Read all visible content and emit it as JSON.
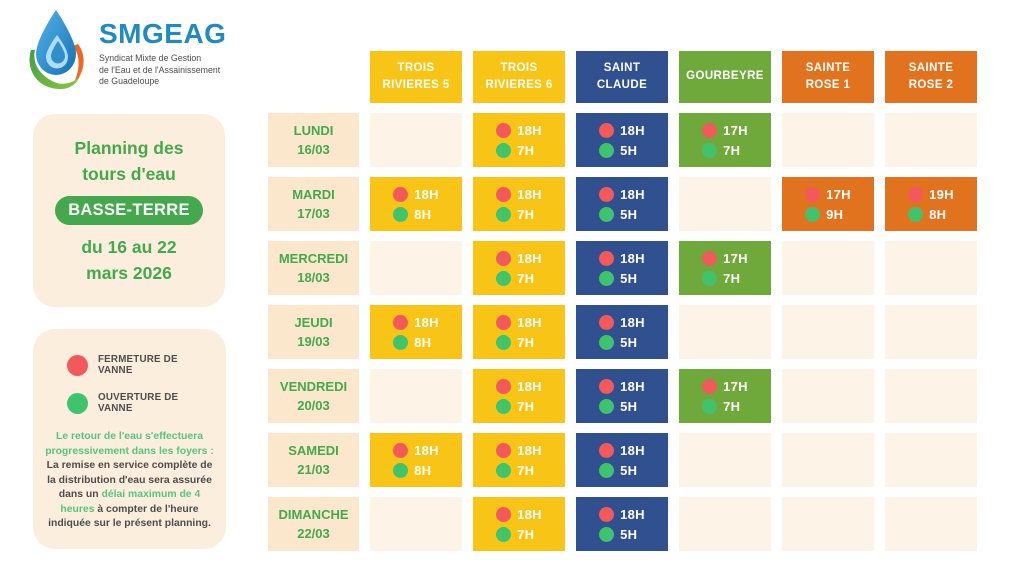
{
  "colors": {
    "page_bg": "#FFFFFF",
    "card_bg": "#FBEEDC",
    "day_cell_bg": "#FBE7CC",
    "empty_cell_bg": "#FDF3E6",
    "green_text": "#44A94D",
    "badge_bg": "#44A94D",
    "mint_text": "#57C57E",
    "dark_text": "#4D4D4D",
    "close_dot": "#F2595B",
    "open_dot": "#3FC46D",
    "logo_blue": "#1E8BC3"
  },
  "logo": {
    "brand": "SMGEAG",
    "subtitle_lines": [
      "Syndicat Mixte de Gestion",
      "de l'Eau et de l'Assainissement",
      "de Guadeloupe"
    ]
  },
  "sidebar": {
    "title_lines": [
      "Planning des",
      "tours d'eau"
    ],
    "badge": "BASSE-TERRE",
    "date_lines": [
      "du 16 au 22",
      "mars 2026"
    ]
  },
  "legend": {
    "close_label": "FERMETURE DE VANNE",
    "open_label": "OUVERTURE DE VANNE",
    "note": [
      {
        "text": "Le retour de l'eau s'effectuera progressivement dans les foyers :",
        "color": "mint"
      },
      {
        "text": " La remise en service complète de la distribution d'eau sera assurée dans un ",
        "color": "dark"
      },
      {
        "text": "délai maximum de 4 heures",
        "color": "mint"
      },
      {
        "text": " à compter de l'heure indiquée sur le présent planning.",
        "color": "dark"
      }
    ]
  },
  "schedule": {
    "columns": [
      {
        "id": "trois-rivieres-5",
        "label_lines": [
          "TROIS",
          "RIVIERES 5"
        ],
        "color": "#F8C516"
      },
      {
        "id": "trois-rivieres-6",
        "label_lines": [
          "TROIS",
          "RIVIERES 6"
        ],
        "color": "#F8C516"
      },
      {
        "id": "saint-claude",
        "label_lines": [
          "SAINT",
          "CLAUDE"
        ],
        "color": "#31508F"
      },
      {
        "id": "gourbeyre",
        "label_lines": [
          "GOURBEYRE"
        ],
        "color": "#6FA93C"
      },
      {
        "id": "sainte-rose-1",
        "label_lines": [
          "SAINTE",
          "ROSE 1"
        ],
        "color": "#E2731E"
      },
      {
        "id": "sainte-rose-2",
        "label_lines": [
          "SAINTE",
          "ROSE 2"
        ],
        "color": "#E2731E"
      }
    ],
    "rows": [
      {
        "day": "LUNDI",
        "date": "16/03",
        "cells": [
          null,
          {
            "close": "18H",
            "open": "7H"
          },
          {
            "close": "18H",
            "open": "5H"
          },
          {
            "close": "17H",
            "open": "7H"
          },
          null,
          null
        ]
      },
      {
        "day": "MARDI",
        "date": "17/03",
        "cells": [
          {
            "close": "18H",
            "open": "8H"
          },
          {
            "close": "18H",
            "open": "7H"
          },
          {
            "close": "18H",
            "open": "5H"
          },
          null,
          {
            "close": "17H",
            "open": "9H"
          },
          {
            "close": "19H",
            "open": "8H"
          }
        ]
      },
      {
        "day": "MERCREDI",
        "date": "18/03",
        "cells": [
          null,
          {
            "close": "18H",
            "open": "7H"
          },
          {
            "close": "18H",
            "open": "5H"
          },
          {
            "close": "17H",
            "open": "7H"
          },
          null,
          null
        ]
      },
      {
        "day": "JEUDI",
        "date": "19/03",
        "cells": [
          {
            "close": "18H",
            "open": "8H"
          },
          {
            "close": "18H",
            "open": "7H"
          },
          {
            "close": "18H",
            "open": "5H"
          },
          null,
          null,
          null
        ]
      },
      {
        "day": "VENDREDI",
        "date": "20/03",
        "cells": [
          null,
          {
            "close": "18H",
            "open": "7H"
          },
          {
            "close": "18H",
            "open": "5H"
          },
          {
            "close": "17H",
            "open": "7H"
          },
          null,
          null
        ]
      },
      {
        "day": "SAMEDI",
        "date": "21/03",
        "cells": [
          {
            "close": "18H",
            "open": "8H"
          },
          {
            "close": "18H",
            "open": "7H"
          },
          {
            "close": "18H",
            "open": "5H"
          },
          null,
          null,
          null
        ]
      },
      {
        "day": "DIMANCHE",
        "date": "22/03",
        "cells": [
          null,
          {
            "close": "18H",
            "open": "7H"
          },
          {
            "close": "18H",
            "open": "5H"
          },
          null,
          null,
          null
        ]
      }
    ]
  }
}
